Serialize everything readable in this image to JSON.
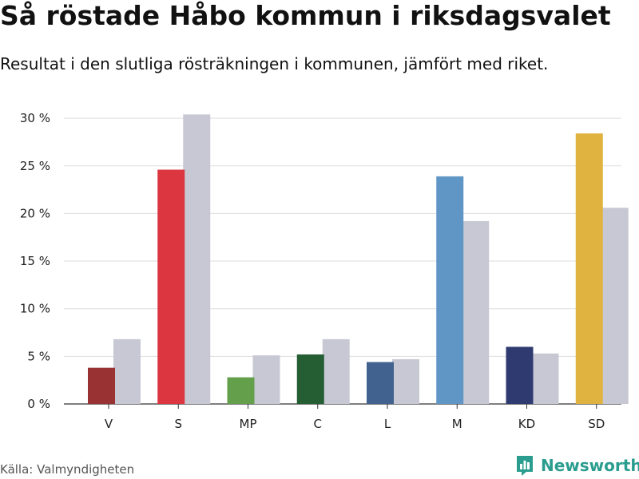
{
  "header": {
    "title": "Så röstade Håbo kommun i riksdagsvalet",
    "subtitle": "Resultat i den slutliga rösträkningen i kommunen, jämfört med riket."
  },
  "footer": {
    "source": "Källa: Valmyndigheten",
    "brand": "Newsworthy"
  },
  "chart_data": {
    "type": "bar",
    "categories": [
      "V",
      "S",
      "MP",
      "C",
      "L",
      "M",
      "KD",
      "SD"
    ],
    "series": [
      {
        "values": [
          3.8,
          24.6,
          2.8,
          5.2,
          4.4,
          23.9,
          6.0,
          28.4
        ],
        "colors": [
          "#993333",
          "#dc3640",
          "#64a04c",
          "#245e32",
          "#41628f",
          "#6096c6",
          "#2f3b70",
          "#e0b23f"
        ]
      },
      {
        "values": [
          6.8,
          30.4,
          5.1,
          6.8,
          4.7,
          19.2,
          5.3,
          20.6
        ],
        "color": "#c8c8d4"
      }
    ],
    "yticks": [
      "0 %",
      "5 %",
      "10 %",
      "15 %",
      "20 %",
      "25 %",
      "30 %"
    ],
    "ytick_values": [
      0,
      5,
      10,
      15,
      20,
      25,
      30
    ],
    "ylim": [
      0,
      31
    ],
    "grid": true,
    "legend": "none"
  }
}
